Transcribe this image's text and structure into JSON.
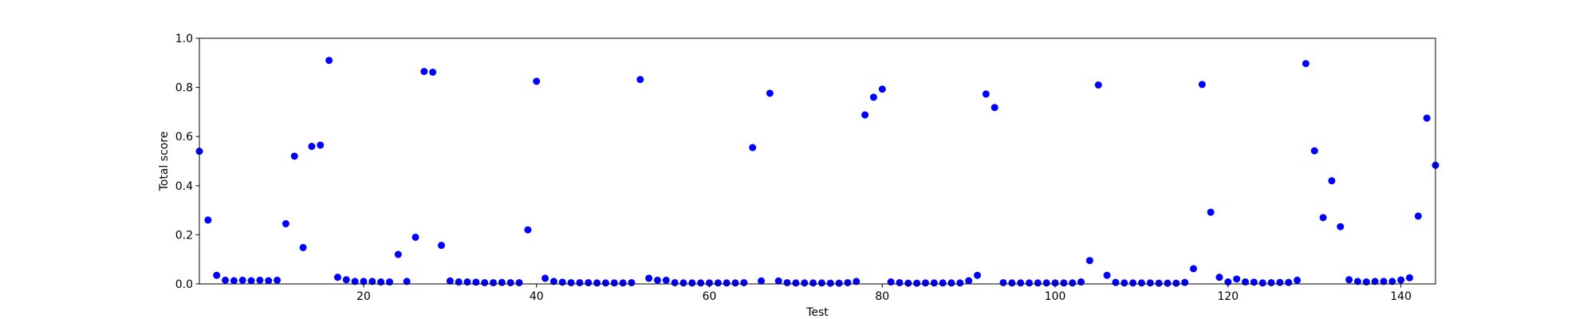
{
  "chart_data": {
    "type": "scatter",
    "xlabel": "Test",
    "ylabel": "Total score",
    "color": "#0000ff",
    "x": [
      1,
      2,
      3,
      4,
      5,
      6,
      7,
      8,
      9,
      10,
      11,
      12,
      13,
      14,
      15,
      16,
      17,
      18,
      19,
      20,
      21,
      22,
      23,
      24,
      25,
      26,
      27,
      28,
      29,
      30,
      31,
      32,
      33,
      34,
      35,
      36,
      37,
      38,
      39,
      40,
      41,
      42,
      43,
      44,
      45,
      46,
      47,
      48,
      49,
      50,
      51,
      52,
      53,
      54,
      55,
      56,
      57,
      58,
      59,
      60,
      61,
      62,
      63,
      64,
      65,
      66,
      67,
      68,
      69,
      70,
      71,
      72,
      73,
      74,
      75,
      76,
      77,
      78,
      79,
      80,
      81,
      82,
      83,
      84,
      85,
      86,
      87,
      88,
      89,
      90,
      91,
      92,
      93,
      94,
      95,
      96,
      97,
      98,
      99,
      100,
      101,
      102,
      103,
      104,
      105,
      106,
      107,
      108,
      109,
      110,
      111,
      112,
      113,
      114,
      115,
      116,
      117,
      118,
      119,
      120,
      121,
      122,
      123,
      124,
      125,
      126,
      127,
      128,
      129,
      130,
      131,
      132,
      133,
      134,
      135,
      136,
      137,
      138,
      139,
      140,
      141,
      142,
      143,
      144
    ],
    "values": [
      0.54,
      0.26,
      0.035,
      0.015,
      0.013,
      0.015,
      0.013,
      0.015,
      0.013,
      0.015,
      0.245,
      0.52,
      0.148,
      0.56,
      0.565,
      0.91,
      0.027,
      0.017,
      0.01,
      0.01,
      0.01,
      0.008,
      0.008,
      0.12,
      0.01,
      0.19,
      0.865,
      0.862,
      0.157,
      0.012,
      0.008,
      0.008,
      0.007,
      0.005,
      0.005,
      0.006,
      0.005,
      0.005,
      0.22,
      0.825,
      0.023,
      0.01,
      0.007,
      0.005,
      0.005,
      0.005,
      0.004,
      0.004,
      0.004,
      0.004,
      0.005,
      0.832,
      0.023,
      0.015,
      0.015,
      0.005,
      0.004,
      0.004,
      0.004,
      0.004,
      0.004,
      0.004,
      0.004,
      0.005,
      0.555,
      0.012,
      0.776,
      0.012,
      0.005,
      0.004,
      0.004,
      0.004,
      0.004,
      0.003,
      0.003,
      0.005,
      0.01,
      0.688,
      0.76,
      0.793,
      0.008,
      0.005,
      0.003,
      0.003,
      0.004,
      0.004,
      0.004,
      0.004,
      0.004,
      0.013,
      0.035,
      0.773,
      0.718,
      0.005,
      0.004,
      0.004,
      0.004,
      0.004,
      0.004,
      0.004,
      0.004,
      0.004,
      0.008,
      0.095,
      0.81,
      0.035,
      0.006,
      0.004,
      0.004,
      0.004,
      0.004,
      0.003,
      0.003,
      0.003,
      0.006,
      0.062,
      0.812,
      0.292,
      0.027,
      0.008,
      0.02,
      0.008,
      0.007,
      0.004,
      0.005,
      0.006,
      0.006,
      0.015,
      0.897,
      0.542,
      0.27,
      0.42,
      0.233,
      0.017,
      0.01,
      0.008,
      0.01,
      0.01,
      0.01,
      0.016,
      0.025,
      0.276,
      0.675,
      0.483
    ],
    "xlim": [
      1,
      144
    ],
    "xticks": [
      20,
      40,
      60,
      80,
      100,
      120,
      140
    ],
    "ylim": [
      0,
      1
    ],
    "yticks": [
      {
        "value": 0,
        "label": "0.0"
      },
      {
        "value": 0.2,
        "label": "0.2"
      },
      {
        "value": 0.4,
        "label": "0.4"
      },
      {
        "value": 0.6,
        "label": "0.6"
      },
      {
        "value": 0.8,
        "label": "0.8"
      },
      {
        "value": 1,
        "label": "1.0"
      }
    ]
  }
}
